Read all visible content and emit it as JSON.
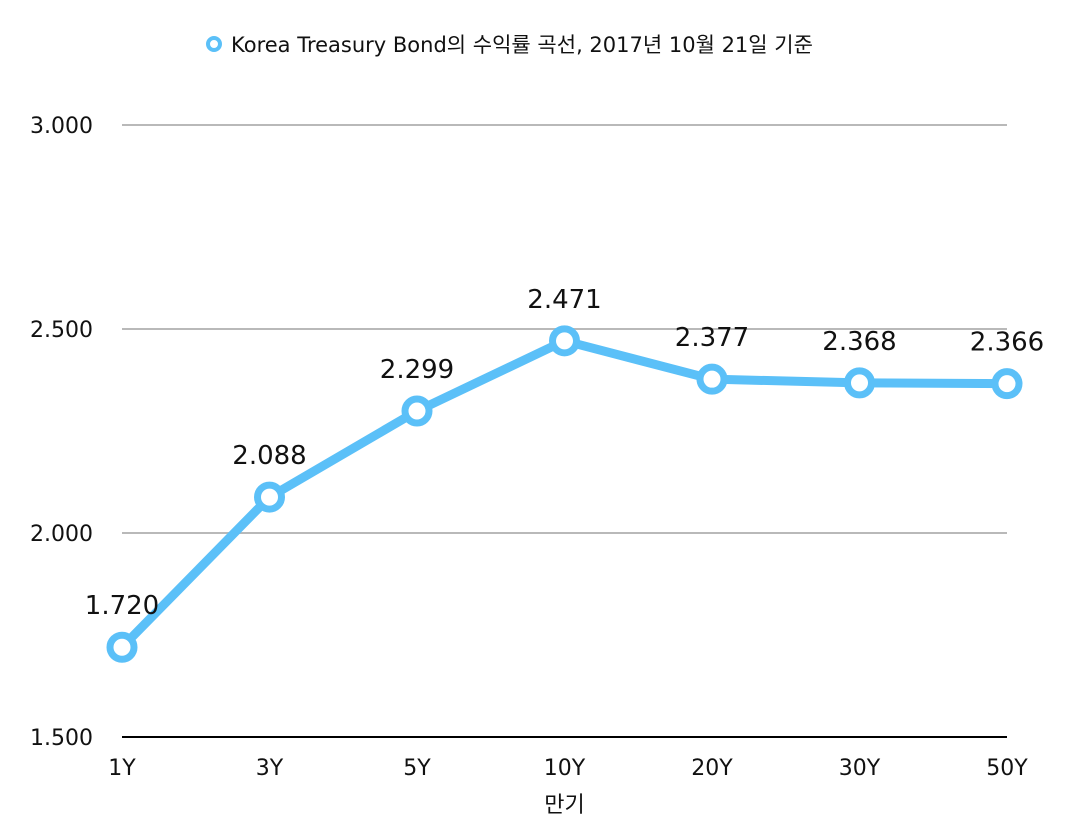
{
  "chart_data": {
    "type": "line",
    "categories": [
      "1Y",
      "3Y",
      "5Y",
      "10Y",
      "20Y",
      "30Y",
      "50Y"
    ],
    "series": [
      {
        "name": "Korea Treasury Bond의 수익률 곡선, 2017년 10월 21일 기준",
        "values": [
          1.72,
          2.088,
          2.299,
          2.471,
          2.377,
          2.368,
          2.366
        ],
        "labels": [
          "1.720",
          "2.088",
          "2.299",
          "2.471",
          "2.377",
          "2.368",
          "2.366"
        ]
      }
    ],
    "ylim": [
      1.5,
      3.0
    ],
    "yticks": [
      {
        "value": 1.5,
        "label": "1.500"
      },
      {
        "value": 2.0,
        "label": "2.000"
      },
      {
        "value": 2.5,
        "label": "2.500"
      },
      {
        "value": 3.0,
        "label": "3.000"
      }
    ],
    "xlabel": "만기",
    "ylabel": "",
    "title": "",
    "legend_position": "top-center",
    "grid": true,
    "line_color": "#5bc0f8",
    "grid_color": "#b9b9b9",
    "axis_color": "#000000"
  }
}
